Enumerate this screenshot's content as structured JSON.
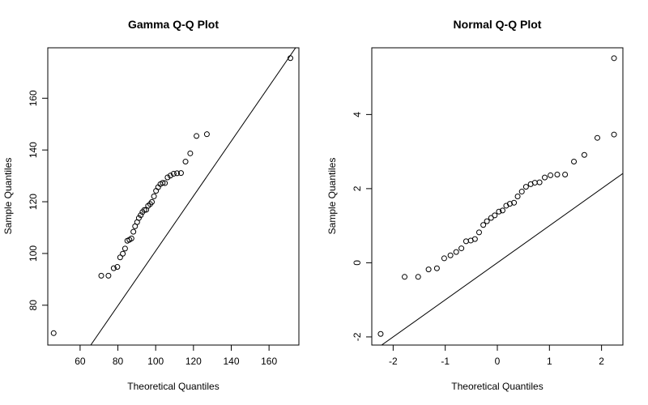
{
  "chart_data": [
    {
      "type": "scatter",
      "title": "Gamma Q-Q Plot",
      "xlabel": "Theoretical Quantiles",
      "ylabel": "Sample Quantiles",
      "xlim": [
        42.9,
        175.8
      ],
      "ylim": [
        64.6,
        179.5
      ],
      "xticks": [
        60,
        80,
        100,
        120,
        140,
        160
      ],
      "yticks": [
        80,
        100,
        120,
        140,
        160
      ],
      "grid": false,
      "ref_line": {
        "slope": 1.06,
        "intercept": -5.0
      },
      "points": [
        [
          46.0,
          69.2
        ],
        [
          71.2,
          91.4
        ],
        [
          75.0,
          91.4
        ],
        [
          77.8,
          94.3
        ],
        [
          79.7,
          94.8
        ],
        [
          81.2,
          98.5
        ],
        [
          82.6,
          99.9
        ],
        [
          83.8,
          101.9
        ],
        [
          85.0,
          104.9
        ],
        [
          86.1,
          105.3
        ],
        [
          87.2,
          105.8
        ],
        [
          88.2,
          108.4
        ],
        [
          89.1,
          110.5
        ],
        [
          90.2,
          112.1
        ],
        [
          91.1,
          113.7
        ],
        [
          92.1,
          114.8
        ],
        [
          93.0,
          116.0
        ],
        [
          94.0,
          116.8
        ],
        [
          95.0,
          116.9
        ],
        [
          96.0,
          118.4
        ],
        [
          97.1,
          119.1
        ],
        [
          98.0,
          119.9
        ],
        [
          99.1,
          122.1
        ],
        [
          100.2,
          124.2
        ],
        [
          101.3,
          125.6
        ],
        [
          102.5,
          126.8
        ],
        [
          103.7,
          127.3
        ],
        [
          104.9,
          127.2
        ],
        [
          106.3,
          129.4
        ],
        [
          107.8,
          130.1
        ],
        [
          109.5,
          130.8
        ],
        [
          111.3,
          131.0
        ],
        [
          113.4,
          131.1
        ],
        [
          115.8,
          135.5
        ],
        [
          118.3,
          138.7
        ],
        [
          121.6,
          145.4
        ],
        [
          127.1,
          146.1
        ],
        [
          171.3,
          175.5
        ]
      ]
    },
    {
      "type": "scatter",
      "title": "Normal Q-Q Plot",
      "xlabel": "Theoretical Quantiles",
      "ylabel": "Sample Quantiles",
      "xlim": [
        -2.41,
        2.41
      ],
      "ylim": [
        -2.22,
        5.8
      ],
      "xticks": [
        -2,
        -1,
        0,
        1,
        2
      ],
      "yticks": [
        -2,
        0,
        2,
        4
      ],
      "grid": false,
      "ref_line": {
        "slope": 1.0,
        "intercept": 0.0
      },
      "points": [
        [
          -2.24,
          -1.92
        ],
        [
          -1.78,
          -0.38
        ],
        [
          -1.52,
          -0.38
        ],
        [
          -1.32,
          -0.18
        ],
        [
          -1.16,
          -0.15
        ],
        [
          -1.02,
          0.12
        ],
        [
          -0.9,
          0.2
        ],
        [
          -0.79,
          0.29
        ],
        [
          -0.69,
          0.39
        ],
        [
          -0.6,
          0.58
        ],
        [
          -0.51,
          0.6
        ],
        [
          -0.43,
          0.64
        ],
        [
          -0.35,
          0.82
        ],
        [
          -0.27,
          1.02
        ],
        [
          -0.2,
          1.12
        ],
        [
          -0.12,
          1.21
        ],
        [
          -0.05,
          1.28
        ],
        [
          0.03,
          1.38
        ],
        [
          0.1,
          1.41
        ],
        [
          0.17,
          1.54
        ],
        [
          0.24,
          1.59
        ],
        [
          0.32,
          1.62
        ],
        [
          0.39,
          1.79
        ],
        [
          0.47,
          1.92
        ],
        [
          0.55,
          2.05
        ],
        [
          0.64,
          2.12
        ],
        [
          0.72,
          2.16
        ],
        [
          0.81,
          2.17
        ],
        [
          0.91,
          2.3
        ],
        [
          1.02,
          2.36
        ],
        [
          1.15,
          2.38
        ],
        [
          1.3,
          2.38
        ],
        [
          1.47,
          2.73
        ],
        [
          1.67,
          2.91
        ],
        [
          1.92,
          3.37
        ],
        [
          2.24,
          3.46
        ],
        [
          2.24,
          5.52
        ]
      ]
    }
  ]
}
